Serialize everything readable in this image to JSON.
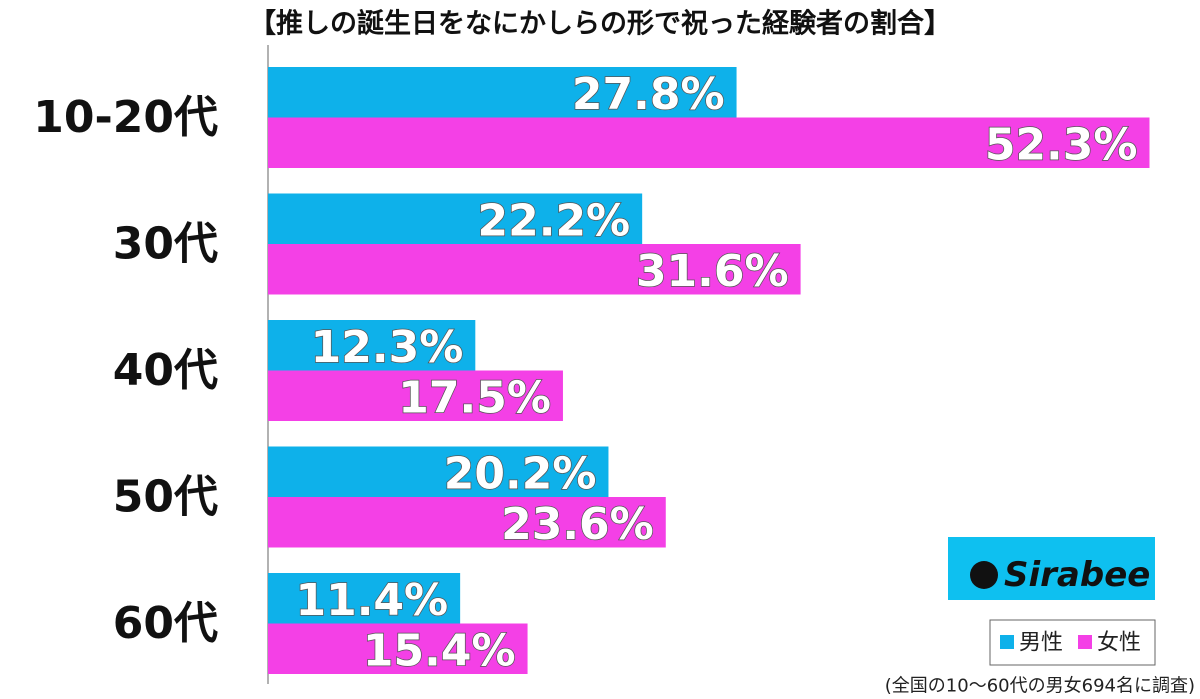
{
  "chart_data": {
    "type": "hbar",
    "title": "【推しの誕生日をなにかしらの形で祝った経験者の割合】",
    "categories": [
      "10-20代",
      "30代",
      "40代",
      "50代",
      "60代"
    ],
    "series": [
      {
        "name": "男性",
        "color": "#0eb1ea",
        "values": [
          27.8,
          22.2,
          12.3,
          20.2,
          11.4
        ],
        "value_labels": [
          "27.8%",
          "22.2%",
          "12.3%",
          "20.2%",
          "11.4%"
        ]
      },
      {
        "name": "女性",
        "color": "#f440e6",
        "values": [
          52.3,
          31.6,
          17.5,
          23.6,
          15.4
        ],
        "value_labels": [
          "52.3%",
          "31.6%",
          "17.5%",
          "23.6%",
          "15.4%"
        ]
      }
    ],
    "xlim": [
      0,
      55
    ],
    "logo": "Sirabee",
    "footnote": "(全国の10〜60代の男女694名に調査)"
  }
}
